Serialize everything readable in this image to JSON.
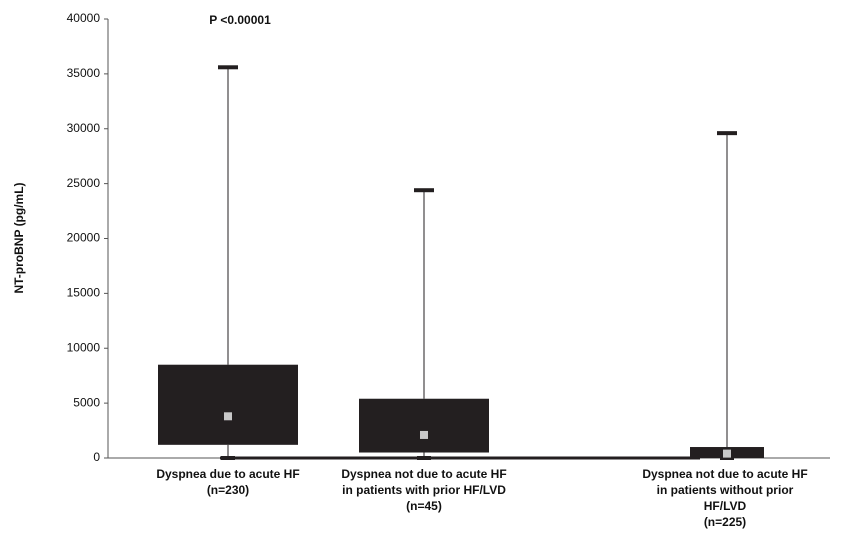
{
  "chart_data": {
    "type": "box",
    "annotation": "P <0.00001",
    "y_label": "NT-proBNP (pg/mL)",
    "categories": [
      [
        "Dyspnea due to acute HF",
        "(n=230)"
      ],
      [
        "Dyspnea not due to acute HF",
        "in patients with prior HF/LVD",
        "(n=45)"
      ],
      [
        "Dyspnea not due to acute HF",
        "in patients without prior",
        "HF/LVD",
        "(n=225)"
      ]
    ],
    "boxes": [
      {
        "min": 0,
        "q1": 1200,
        "median": 3800,
        "q3": 8500,
        "max": 35600
      },
      {
        "min": 0,
        "q1": 500,
        "median": 2100,
        "q3": 5400,
        "max": 24400
      },
      {
        "min": 0,
        "q1": 0,
        "median": 400,
        "q3": 1000,
        "max": 29600
      }
    ],
    "color": "#231f20",
    "median_color": "#c8c8c8",
    "ylim": [
      0,
      40000
    ],
    "yticks": [
      0,
      5000,
      10000,
      15000,
      20000,
      25000,
      30000,
      35000,
      40000
    ]
  }
}
